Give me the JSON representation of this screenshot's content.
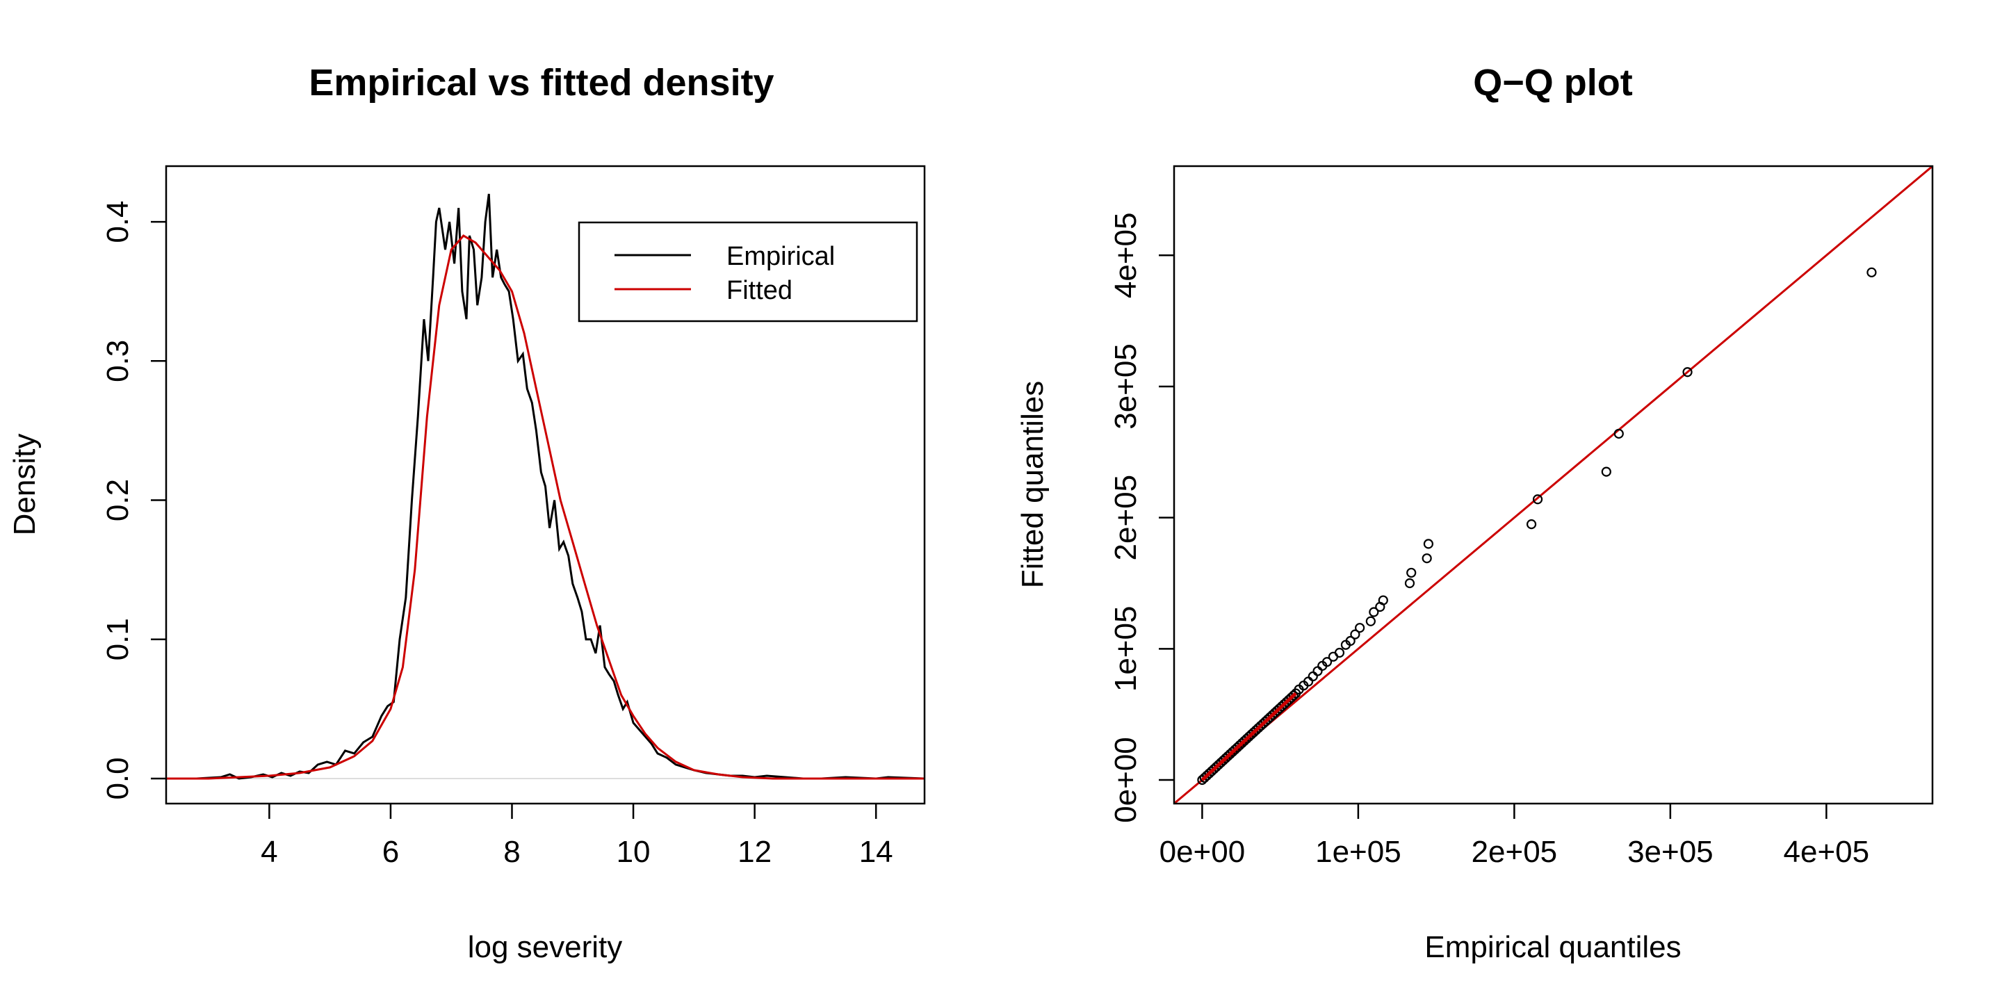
{
  "chart_data": [
    {
      "type": "line",
      "title": "Empirical vs fitted density",
      "xlabel": "log severity",
      "ylabel": "Density",
      "xlim": [
        2.3,
        14.8
      ],
      "ylim": [
        -0.018,
        0.44
      ],
      "xticks": [
        4,
        6,
        8,
        10,
        12,
        14
      ],
      "xtick_labels": [
        "4",
        "6",
        "8",
        "10",
        "12",
        "14"
      ],
      "yticks": [
        0.0,
        0.1,
        0.2,
        0.3,
        0.4
      ],
      "ytick_labels": [
        "0.0",
        "0.1",
        "0.2",
        "0.3",
        "0.4"
      ],
      "legend": {
        "position": "top-right",
        "entries": [
          "Empirical",
          "Fitted"
        ]
      },
      "colors": {
        "empirical": "#000000",
        "fitted": "#cc0000"
      },
      "series": [
        {
          "name": "Empirical",
          "x": [
            2.3,
            2.8,
            3.2,
            3.35,
            3.5,
            3.7,
            3.9,
            4.05,
            4.2,
            4.35,
            4.5,
            4.65,
            4.8,
            4.95,
            5.1,
            5.25,
            5.4,
            5.55,
            5.7,
            5.85,
            5.95,
            6.05,
            6.15,
            6.25,
            6.35,
            6.45,
            6.55,
            6.62,
            6.7,
            6.75,
            6.8,
            6.9,
            6.97,
            7.05,
            7.12,
            7.18,
            7.25,
            7.3,
            7.37,
            7.43,
            7.5,
            7.56,
            7.62,
            7.68,
            7.75,
            7.82,
            7.88,
            7.95,
            8.02,
            8.1,
            8.18,
            8.25,
            8.33,
            8.4,
            8.48,
            8.55,
            8.62,
            8.7,
            8.78,
            8.85,
            8.93,
            9.0,
            9.08,
            9.15,
            9.22,
            9.3,
            9.38,
            9.45,
            9.53,
            9.6,
            9.68,
            9.75,
            9.83,
            9.9,
            10.0,
            10.1,
            10.2,
            10.3,
            10.4,
            10.55,
            10.7,
            10.85,
            11.0,
            11.2,
            11.4,
            11.6,
            11.8,
            12.0,
            12.2,
            12.5,
            12.8,
            13.1,
            13.5,
            14.0,
            14.2,
            14.8
          ],
          "y": [
            0.0,
            0.0,
            0.001,
            0.003,
            0.0,
            0.001,
            0.003,
            0.001,
            0.004,
            0.002,
            0.005,
            0.004,
            0.01,
            0.012,
            0.01,
            0.02,
            0.018,
            0.026,
            0.03,
            0.045,
            0.052,
            0.055,
            0.1,
            0.13,
            0.2,
            0.26,
            0.33,
            0.3,
            0.36,
            0.4,
            0.41,
            0.38,
            0.4,
            0.37,
            0.41,
            0.35,
            0.33,
            0.39,
            0.38,
            0.34,
            0.36,
            0.4,
            0.42,
            0.36,
            0.38,
            0.36,
            0.355,
            0.35,
            0.33,
            0.3,
            0.305,
            0.28,
            0.27,
            0.25,
            0.22,
            0.21,
            0.18,
            0.2,
            0.165,
            0.17,
            0.16,
            0.14,
            0.13,
            0.12,
            0.1,
            0.1,
            0.09,
            0.11,
            0.08,
            0.075,
            0.07,
            0.06,
            0.05,
            0.055,
            0.04,
            0.035,
            0.03,
            0.025,
            0.018,
            0.015,
            0.01,
            0.008,
            0.006,
            0.004,
            0.003,
            0.002,
            0.002,
            0.001,
            0.002,
            0.001,
            0.0,
            0.0,
            0.001,
            0.0,
            0.001,
            0.0
          ]
        },
        {
          "name": "Fitted",
          "x": [
            2.3,
            3.0,
            3.5,
            4.0,
            4.5,
            5.0,
            5.4,
            5.7,
            6.0,
            6.2,
            6.4,
            6.6,
            6.8,
            7.0,
            7.2,
            7.4,
            7.6,
            7.8,
            8.0,
            8.2,
            8.4,
            8.6,
            8.8,
            9.0,
            9.2,
            9.4,
            9.6,
            9.8,
            10.0,
            10.2,
            10.4,
            10.7,
            11.0,
            11.4,
            11.8,
            12.3,
            13.0,
            14.0,
            14.8
          ],
          "y": [
            0.0,
            0.0,
            0.001,
            0.002,
            0.004,
            0.008,
            0.016,
            0.027,
            0.05,
            0.08,
            0.15,
            0.26,
            0.34,
            0.38,
            0.39,
            0.385,
            0.375,
            0.365,
            0.35,
            0.32,
            0.28,
            0.24,
            0.2,
            0.17,
            0.14,
            0.11,
            0.085,
            0.06,
            0.045,
            0.032,
            0.022,
            0.012,
            0.006,
            0.003,
            0.001,
            0.0,
            0.0,
            0.0,
            0.0
          ]
        }
      ]
    },
    {
      "type": "scatter",
      "title": "Q−Q plot",
      "xlabel": "Empirical quantiles",
      "ylabel": "Fitted quantiles",
      "xlim": [
        -18000,
        468000
      ],
      "ylim": [
        -18000,
        468000
      ],
      "xticks": [
        0,
        100000,
        200000,
        300000,
        400000
      ],
      "xtick_labels": [
        "0e+00",
        "1e+05",
        "2e+05",
        "3e+05",
        "4e+05"
      ],
      "yticks": [
        0,
        100000,
        200000,
        300000,
        400000
      ],
      "ytick_labels": [
        "0e+00",
        "1e+05",
        "2e+05",
        "3e+05",
        "4e+05"
      ],
      "reference_line": {
        "intercept": 0,
        "slope": 1,
        "color": "#cc0000"
      },
      "dense_run": {
        "from": 0,
        "to": 60000,
        "step": 1500,
        "ratio": 1.1,
        "color": "#cc0000"
      },
      "points": {
        "x": [
          62000,
          65000,
          68000,
          71000,
          74000,
          77000,
          80000,
          84000,
          88000,
          92000,
          95000,
          98000,
          101000,
          108000,
          110000,
          114000,
          116000,
          133000,
          134000,
          144000,
          145000,
          211000,
          215000,
          259000,
          267000,
          311000,
          429000
        ],
        "y": [
          69000,
          72000,
          75000,
          79000,
          83000,
          87000,
          90000,
          94000,
          97000,
          103000,
          106000,
          111000,
          116000,
          121000,
          128000,
          132000,
          137000,
          150000,
          158000,
          169000,
          180000,
          195000,
          214000,
          235000,
          264000,
          311000,
          387000
        ]
      }
    }
  ]
}
